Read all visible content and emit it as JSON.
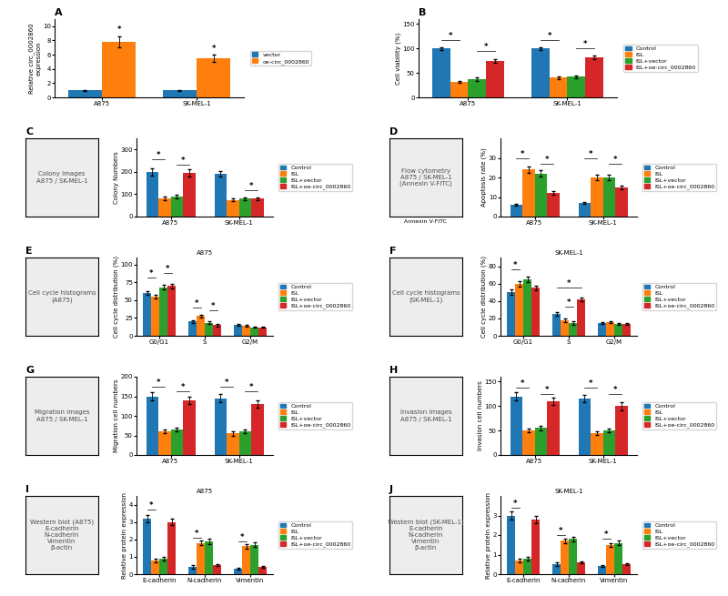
{
  "chart_data": [
    {
      "type": "bar",
      "title": "A",
      "ylabel": "Relative circ_0002860\nexpression",
      "categories": [
        "A875",
        "SK-MEL-1"
      ],
      "series": [
        {
          "name": "vector",
          "values": [
            1.0,
            1.0
          ],
          "errors": [
            0.05,
            0.05
          ]
        },
        {
          "name": "oe-circ_0002860",
          "values": [
            7.8,
            5.5
          ],
          "errors": [
            0.8,
            0.5
          ]
        }
      ],
      "ylim": [
        0,
        11
      ],
      "yticks": [
        0,
        2,
        4,
        6,
        8,
        10
      ],
      "legend": "center left",
      "annotations": [
        {
          "text": "*",
          "category": "A875",
          "series": [
            "oe-circ_0002860"
          ],
          "y": 8.9
        },
        {
          "text": "*",
          "category": "SK-MEL-1",
          "series": [
            "oe-circ_0002860"
          ],
          "y": 6.3
        }
      ]
    },
    {
      "type": "bar",
      "title": "B",
      "ylabel": "Cell viability (%)",
      "categories": [
        "A875",
        "SK-MEL-1"
      ],
      "series": [
        {
          "name": "Control",
          "values": [
            100,
            100
          ],
          "errors": [
            3,
            3
          ]
        },
        {
          "name": "ISL",
          "values": [
            32,
            40
          ],
          "errors": [
            2,
            2
          ]
        },
        {
          "name": "ISL+vector",
          "values": [
            37,
            42
          ],
          "errors": [
            3,
            3
          ]
        },
        {
          "name": "ISL+oe-circ_0002860",
          "values": [
            74,
            82
          ],
          "errors": [
            4,
            4
          ]
        }
      ],
      "ylim": [
        0,
        160
      ],
      "yticks": [
        0,
        50,
        100,
        150
      ],
      "legend": "center left",
      "annotations": [
        {
          "text": "*",
          "category": "A875",
          "series": [
            "Control",
            "ISL"
          ],
          "y": 118
        },
        {
          "text": "*",
          "category": "A875",
          "series": [
            "ISL+vector",
            "ISL+oe-circ_0002860"
          ],
          "y": 95
        },
        {
          "text": "*",
          "category": "SK-MEL-1",
          "series": [
            "Control",
            "ISL"
          ],
          "y": 118
        },
        {
          "text": "*",
          "category": "SK-MEL-1",
          "series": [
            "ISL+vector",
            "ISL+oe-circ_0002860"
          ],
          "y": 100
        }
      ]
    },
    {
      "type": "image",
      "title": "C",
      "tick_labels": false,
      "annotations": [
        "Colony images\nA875 / SK-MEL-1"
      ]
    },
    {
      "type": "bar",
      "ylabel": "Colony Numbers",
      "categories": [
        "A875",
        "SK-MEL-1"
      ],
      "series": [
        {
          "name": "Control",
          "values": [
            200,
            190
          ],
          "errors": [
            15,
            12
          ]
        },
        {
          "name": "ISL",
          "values": [
            80,
            75
          ],
          "errors": [
            8,
            7
          ]
        },
        {
          "name": "ISL+vector",
          "values": [
            90,
            80
          ],
          "errors": [
            8,
            7
          ]
        },
        {
          "name": "ISL+oe-circ_0002860",
          "values": [
            195,
            80
          ],
          "errors": [
            15,
            7
          ]
        }
      ],
      "ylim": [
        0,
        350
      ],
      "yticks": [
        0,
        100,
        200,
        300
      ],
      "legend": "center left",
      "annotations": [
        {
          "text": "*",
          "category": "A875",
          "series": [
            "Control",
            "ISL"
          ],
          "y": 255
        },
        {
          "text": "*",
          "category": "A875",
          "series": [
            "ISL+vector",
            "ISL+oe-circ_0002860"
          ],
          "y": 230
        },
        {
          "text": "*",
          "category": "SK-MEL-1",
          "series": [
            "ISL+vector",
            "ISL+oe-circ_0002860"
          ],
          "y": 120
        }
      ]
    },
    {
      "type": "image",
      "title": "D",
      "tick_labels": false,
      "xlabel": "Annexin V-FITC",
      "annotations": [
        "Flow cytometry\nA875 / SK-MEL-1\n(Annexin V-FITC)"
      ]
    },
    {
      "type": "bar",
      "ylabel": "Apoptosis rate (%)",
      "categories": [
        "A875",
        "SK-MEL-1"
      ],
      "series": [
        {
          "name": "Control",
          "values": [
            6,
            7
          ],
          "errors": [
            0.5,
            0.5
          ]
        },
        {
          "name": "ISL",
          "values": [
            24,
            20
          ],
          "errors": [
            1.5,
            1.2
          ]
        },
        {
          "name": "ISL+vector",
          "values": [
            22,
            20
          ],
          "errors": [
            1.5,
            1.2
          ]
        },
        {
          "name": "ISL+oe-circ_0002860",
          "values": [
            12,
            15
          ],
          "errors": [
            1,
            1
          ]
        }
      ],
      "ylim": [
        0,
        40
      ],
      "yticks": [
        0,
        10,
        20,
        30
      ],
      "legend": "center left",
      "annotations": [
        {
          "text": "*",
          "category": "A875",
          "series": [
            "Control",
            "ISL"
          ],
          "y": 30
        },
        {
          "text": "*",
          "category": "A875",
          "series": [
            "ISL+vector",
            "ISL+oe-circ_0002860"
          ],
          "y": 27
        },
        {
          "text": "*",
          "category": "SK-MEL-1",
          "series": [
            "Control",
            "ISL"
          ],
          "y": 30
        },
        {
          "text": "*",
          "category": "SK-MEL-1",
          "series": [
            "ISL+vector",
            "ISL+oe-circ_0002860"
          ],
          "y": 27
        }
      ]
    },
    {
      "type": "image",
      "title": "E",
      "tick_labels": false,
      "annotations": [
        "Cell cycle histograms\n(A875)"
      ]
    },
    {
      "type": "bar",
      "subtitle": "A875",
      "ylabel": "Cell cycle distribution (%)",
      "categories": [
        "G0/G1",
        "S",
        "G2/M"
      ],
      "series": [
        {
          "name": "Control",
          "values": [
            60,
            20,
            15
          ],
          "errors": [
            3,
            2,
            1
          ]
        },
        {
          "name": "ISL",
          "values": [
            55,
            28,
            14
          ],
          "errors": [
            3,
            2,
            1
          ]
        },
        {
          "name": "ISL+vector",
          "values": [
            68,
            18,
            12
          ],
          "errors": [
            3,
            2,
            1
          ]
        },
        {
          "name": "ISL+oe-circ_0002860",
          "values": [
            70,
            15,
            12
          ],
          "errors": [
            3,
            2,
            1
          ]
        }
      ],
      "ylim": [
        0,
        110
      ],
      "yticks": [
        0,
        25,
        50,
        75,
        100
      ],
      "legend": "center left",
      "annotations": [
        {
          "text": "*",
          "category": "G0/G1",
          "series": [
            "Control",
            "ISL"
          ],
          "y": 82
        },
        {
          "text": "*",
          "category": "G0/G1",
          "series": [
            "ISL+vector",
            "ISL+oe-circ_0002860"
          ],
          "y": 88
        },
        {
          "text": "*",
          "category": "S",
          "series": [
            "Control",
            "ISL"
          ],
          "y": 40
        },
        {
          "text": "*",
          "category": "S",
          "series": [
            "ISL+vector",
            "ISL+oe-circ_0002860"
          ],
          "y": 36
        }
      ]
    },
    {
      "type": "image",
      "title": "F",
      "tick_labels": false,
      "annotations": [
        "Cell cycle histograms\n(SK-MEL-1)"
      ]
    },
    {
      "type": "bar",
      "subtitle": "SK-MEL-1",
      "ylabel": "Cell cycle distribution (%)",
      "categories": [
        "G0/G1",
        "S",
        "G2/M"
      ],
      "series": [
        {
          "name": "Control",
          "values": [
            50,
            25,
            15
          ],
          "errors": [
            3,
            2,
            1
          ]
        },
        {
          "name": "ISL",
          "values": [
            60,
            18,
            16
          ],
          "errors": [
            3,
            2,
            1
          ]
        },
        {
          "name": "ISL+vector",
          "values": [
            65,
            15,
            14
          ],
          "errors": [
            3,
            2,
            1
          ]
        },
        {
          "name": "ISL+oe-circ_0002860",
          "values": [
            55,
            42,
            14
          ],
          "errors": [
            3,
            2,
            1
          ]
        }
      ],
      "ylim": [
        0,
        90
      ],
      "yticks": [
        0,
        20,
        40,
        60,
        80
      ],
      "legend": "center left",
      "annotations": [
        {
          "text": "*",
          "category": "G0/G1",
          "series": [
            "Control",
            "ISL"
          ],
          "y": 76
        },
        {
          "text": "*",
          "category": "S",
          "series": [
            "ISL+oe-circ_0002860",
            "Control"
          ],
          "y": 55
        },
        {
          "text": "*",
          "category": "S",
          "series": [
            "ISL",
            "ISL+vector"
          ],
          "y": 33
        }
      ]
    },
    {
      "type": "image",
      "title": "G",
      "tick_labels": false,
      "annotations": [
        "Migration images\nA875 / SK-MEL-1"
      ]
    },
    {
      "type": "bar",
      "ylabel": "Migration cell numbers",
      "categories": [
        "A875",
        "SK-MEL-1"
      ],
      "series": [
        {
          "name": "Control",
          "values": [
            150,
            145
          ],
          "errors": [
            10,
            10
          ]
        },
        {
          "name": "ISL",
          "values": [
            60,
            55
          ],
          "errors": [
            5,
            5
          ]
        },
        {
          "name": "ISL+vector",
          "values": [
            65,
            60
          ],
          "errors": [
            5,
            5
          ]
        },
        {
          "name": "ISL+oe-circ_0002860",
          "values": [
            140,
            130
          ],
          "errors": [
            10,
            10
          ]
        }
      ],
      "ylim": [
        0,
        200
      ],
      "yticks": [
        0,
        50,
        100,
        150,
        200
      ],
      "legend": "center left",
      "annotations": [
        {
          "text": "*",
          "category": "A875",
          "series": [
            "Control",
            "ISL"
          ],
          "y": 175
        },
        {
          "text": "*",
          "category": "A875",
          "series": [
            "ISL+vector",
            "ISL+oe-circ_0002860"
          ],
          "y": 162
        },
        {
          "text": "*",
          "category": "SK-MEL-1",
          "series": [
            "Control",
            "ISL"
          ],
          "y": 175
        },
        {
          "text": "*",
          "category": "SK-MEL-1",
          "series": [
            "ISL+vector",
            "ISL+oe-circ_0002860"
          ],
          "y": 162
        }
      ]
    },
    {
      "type": "image",
      "title": "H",
      "tick_labels": false,
      "annotations": [
        "Invasion images\nA875 / SK-MEL-1"
      ]
    },
    {
      "type": "bar",
      "ylabel": "Invasion cell numbers",
      "categories": [
        "A875",
        "SK-MEL-1"
      ],
      "series": [
        {
          "name": "Control",
          "values": [
            120,
            115
          ],
          "errors": [
            8,
            8
          ]
        },
        {
          "name": "ISL",
          "values": [
            50,
            45
          ],
          "errors": [
            4,
            4
          ]
        },
        {
          "name": "ISL+vector",
          "values": [
            55,
            50
          ],
          "errors": [
            4,
            4
          ]
        },
        {
          "name": "ISL+oe-circ_0002860",
          "values": [
            110,
            100
          ],
          "errors": [
            8,
            8
          ]
        }
      ],
      "ylim": [
        0,
        160
      ],
      "yticks": [
        0,
        50,
        100,
        150
      ],
      "legend": "center left",
      "annotations": [
        {
          "text": "*",
          "category": "A875",
          "series": [
            "Control",
            "ISL"
          ],
          "y": 138
        },
        {
          "text": "*",
          "category": "A875",
          "series": [
            "ISL+vector",
            "ISL+oe-circ_0002860"
          ],
          "y": 125
        },
        {
          "text": "*",
          "category": "SK-MEL-1",
          "series": [
            "Control",
            "ISL"
          ],
          "y": 138
        },
        {
          "text": "*",
          "category": "SK-MEL-1",
          "series": [
            "ISL+vector",
            "ISL+oe-circ_0002860"
          ],
          "y": 125
        }
      ]
    },
    {
      "type": "image",
      "title": "I",
      "tick_labels": false,
      "annotations": [
        "Western blot (A875)\nE-cadherin\nN-cadherin\nVimentin\nβ-actin"
      ]
    },
    {
      "type": "bar",
      "subtitle": "A875",
      "ylabel": "Relative protein expression",
      "categories": [
        "E-cadherin",
        "N-cadherin",
        "Vimentin"
      ],
      "series": [
        {
          "name": "Control",
          "values": [
            3.2,
            0.4,
            0.3
          ],
          "errors": [
            0.2,
            0.1,
            0.05
          ]
        },
        {
          "name": "ISL",
          "values": [
            0.8,
            1.8,
            1.6
          ],
          "errors": [
            0.1,
            0.15,
            0.12
          ]
        },
        {
          "name": "ISL+vector",
          "values": [
            0.9,
            1.9,
            1.7
          ],
          "errors": [
            0.1,
            0.15,
            0.12
          ]
        },
        {
          "name": "ISL+oe-circ_0002860",
          "values": [
            3.0,
            0.5,
            0.4
          ],
          "errors": [
            0.2,
            0.05,
            0.05
          ]
        }
      ],
      "ylim": [
        0,
        4.5
      ],
      "yticks": [
        0,
        1,
        2,
        3,
        4
      ],
      "legend": "center left",
      "annotations": [
        {
          "text": "*",
          "category": "E-cadherin",
          "series": [
            "Control",
            "ISL"
          ],
          "y": 3.7
        },
        {
          "text": "*",
          "category": "N-cadherin",
          "series": [
            "Control",
            "ISL"
          ],
          "y": 2.1
        },
        {
          "text": "*",
          "category": "Vimentin",
          "series": [
            "Control",
            "ISL"
          ],
          "y": 1.9
        }
      ]
    },
    {
      "type": "image",
      "title": "J",
      "tick_labels": false,
      "annotations": [
        "Western blot (SK-MEL-1)\nE-cadherin\nN-cadherin\nVimentin\nβ-actin"
      ]
    },
    {
      "type": "bar",
      "subtitle": "SK-MEL-1",
      "ylabel": "Relative protein expression",
      "categories": [
        "E-cadherin",
        "N-cadherin",
        "Vimentin"
      ],
      "series": [
        {
          "name": "Control",
          "values": [
            3.0,
            0.5,
            0.4
          ],
          "errors": [
            0.2,
            0.1,
            0.05
          ]
        },
        {
          "name": "ISL",
          "values": [
            0.7,
            1.7,
            1.5
          ],
          "errors": [
            0.1,
            0.12,
            0.1
          ]
        },
        {
          "name": "ISL+vector",
          "values": [
            0.8,
            1.8,
            1.6
          ],
          "errors": [
            0.1,
            0.12,
            0.1
          ]
        },
        {
          "name": "ISL+oe-circ_0002860",
          "values": [
            2.8,
            0.6,
            0.5
          ],
          "errors": [
            0.2,
            0.05,
            0.05
          ]
        }
      ],
      "ylim": [
        0,
        4.0
      ],
      "yticks": [
        0,
        1,
        2,
        3
      ],
      "legend": "center left",
      "annotations": [
        {
          "text": "*",
          "category": "E-cadherin",
          "series": [
            "Control",
            "ISL"
          ],
          "y": 3.4
        },
        {
          "text": "*",
          "category": "N-cadherin",
          "series": [
            "Control",
            "ISL"
          ],
          "y": 2.0
        },
        {
          "text": "*",
          "category": "Vimentin",
          "series": [
            "Control",
            "ISL"
          ],
          "y": 1.8
        }
      ]
    }
  ]
}
